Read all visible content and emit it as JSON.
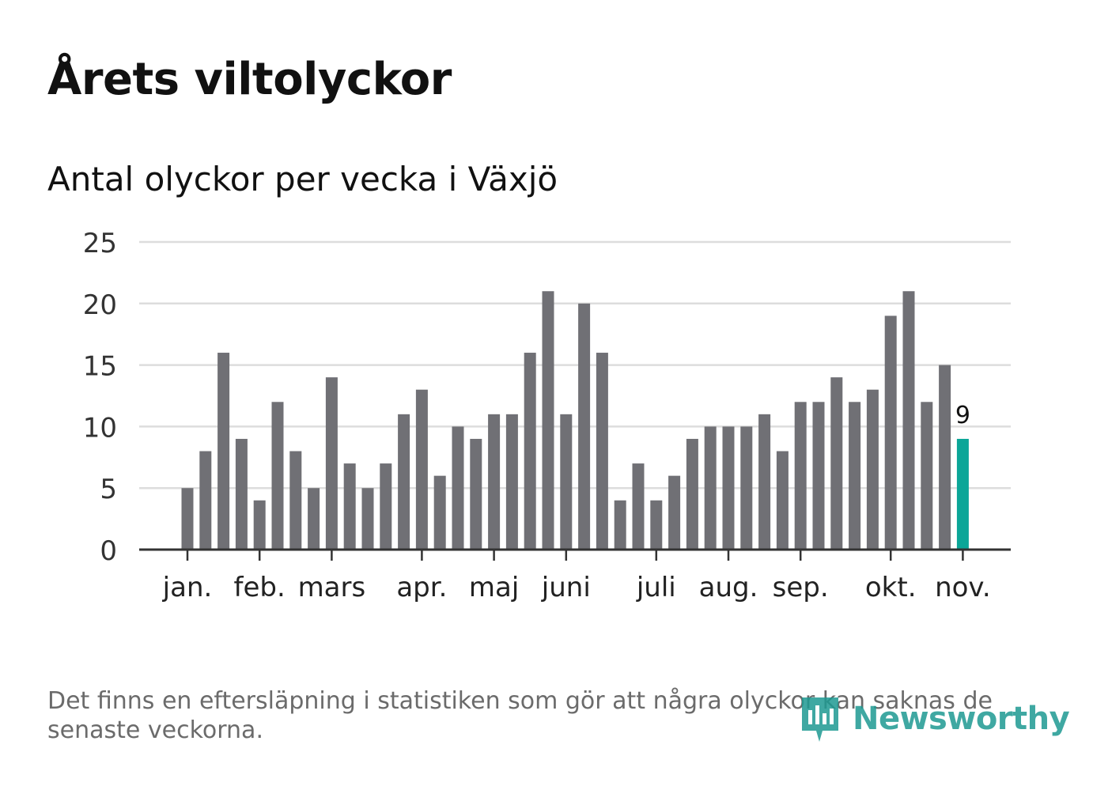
{
  "header": {
    "title": "Årets viltolyckor",
    "subtitle": "Antal olyckor per vecka i Växjö"
  },
  "footer": {
    "note": "Det finns en eftersläpning i statistiken som gör att några olyckor kan saknas de senaste veckorna.",
    "logo_text": "Newsworthy"
  },
  "colors": {
    "bar": "#707075",
    "highlight": "#0ba698",
    "grid": "#dddddd",
    "axis": "#333333",
    "logo": "#1e9a92"
  },
  "chart_data": {
    "type": "bar",
    "title": "Antal olyckor per vecka i Växjö",
    "xlabel": "",
    "ylabel": "",
    "ylim": [
      0,
      25
    ],
    "yticks": [
      0,
      5,
      10,
      15,
      20,
      25
    ],
    "grid": true,
    "weeks": [
      1,
      2,
      3,
      4,
      5,
      6,
      7,
      8,
      9,
      10,
      11,
      12,
      13,
      14,
      15,
      16,
      17,
      18,
      19,
      20,
      21,
      22,
      23,
      24,
      25,
      26,
      27,
      28,
      29,
      30,
      31,
      32,
      33,
      34,
      35,
      36,
      37,
      38,
      39,
      40,
      41,
      42,
      43,
      44
    ],
    "values": [
      5,
      8,
      16,
      9,
      4,
      12,
      8,
      5,
      14,
      7,
      5,
      7,
      11,
      13,
      6,
      10,
      9,
      11,
      11,
      16,
      21,
      11,
      20,
      16,
      4,
      7,
      4,
      6,
      9,
      10,
      10,
      10,
      11,
      8,
      12,
      12,
      14,
      12,
      13,
      19,
      21,
      12,
      15,
      9
    ],
    "highlight_index": 43,
    "highlight_label": "9",
    "month_ticks": [
      {
        "label": "jan.",
        "week": 1
      },
      {
        "label": "feb.",
        "week": 5
      },
      {
        "label": "mars",
        "week": 9
      },
      {
        "label": "apr.",
        "week": 14
      },
      {
        "label": "maj",
        "week": 18
      },
      {
        "label": "juni",
        "week": 22
      },
      {
        "label": "juli",
        "week": 27
      },
      {
        "label": "aug.",
        "week": 31
      },
      {
        "label": "sep.",
        "week": 35
      },
      {
        "label": "okt.",
        "week": 40
      },
      {
        "label": "nov.",
        "week": 44
      }
    ]
  }
}
